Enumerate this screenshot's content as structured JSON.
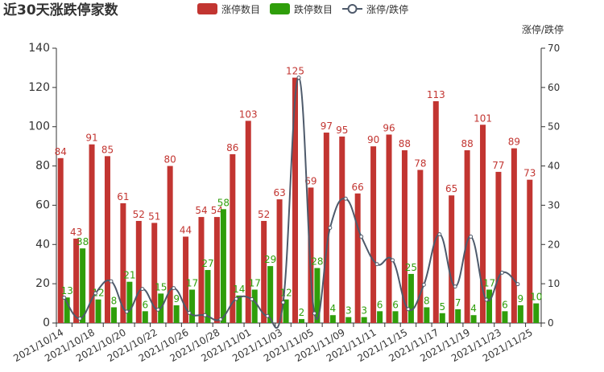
{
  "chart_data": {
    "type": "bar",
    "title": "近30天涨跌停家数",
    "y2_label": "涨停/跌停",
    "categories": [
      "2021/10/14",
      null,
      "2021/10/18",
      null,
      "2021/10/20",
      null,
      "2021/10/22",
      null,
      "2021/10/26",
      null,
      "2021/10/28",
      null,
      "2021/11/01",
      null,
      "2021/11/03",
      null,
      "2021/11/05",
      null,
      "2021/11/09",
      null,
      "2021/11/11",
      null,
      "2021/11/15",
      null,
      "2021/11/17",
      null,
      "2021/11/19",
      null,
      "2021/11/23",
      null,
      "2021/11/25"
    ],
    "series": [
      {
        "name": "涨停数目",
        "color": "#c23531",
        "type": "bar",
        "values": [
          84,
          43,
          91,
          85,
          61,
          52,
          51,
          80,
          44,
          54,
          54,
          86,
          103,
          52,
          63,
          125,
          69,
          97,
          95,
          66,
          90,
          96,
          88,
          78,
          113,
          65,
          88,
          101,
          77,
          89,
          73
        ]
      },
      {
        "name": "跌停数目",
        "color": "#2f9e0a",
        "type": "bar",
        "values": [
          13,
          38,
          12,
          8,
          21,
          6,
          15,
          9,
          17,
          27,
          58,
          14,
          17,
          29,
          12,
          2,
          28,
          4,
          3,
          3,
          6,
          6,
          25,
          8,
          5,
          7,
          4,
          17,
          6,
          9,
          10
        ]
      },
      {
        "name": "涨停/跌停",
        "color": "#4e5a6b",
        "type": "line",
        "axis": "y2",
        "values": [
          6.46,
          1.13,
          7.58,
          10.63,
          2.9,
          8.67,
          3.4,
          8.89,
          2.59,
          2,
          0.93,
          6.14,
          6.06,
          1.79,
          5.25,
          62.5,
          2.46,
          24.25,
          31.67,
          22,
          15,
          16,
          3.52,
          9.75,
          22.6,
          9.29,
          22,
          5.94,
          12.83,
          9.89,
          null
        ]
      }
    ],
    "ylim": [
      0,
      140
    ],
    "yticks": [
      0,
      20,
      40,
      60,
      80,
      100,
      120,
      140
    ],
    "y2lim": [
      0,
      70
    ],
    "y2ticks": [
      0,
      10,
      20,
      30,
      40,
      50,
      60,
      70
    ],
    "legend": "top"
  }
}
